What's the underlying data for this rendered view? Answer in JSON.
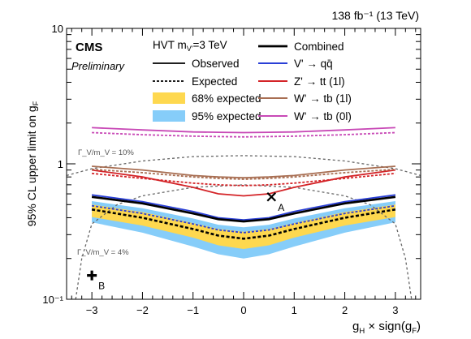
{
  "chart_data": {
    "type": "line",
    "top_right": "138 fb⁻¹ (13 TeV)",
    "experiment": "CMS",
    "status": "Preliminary",
    "model": "HVT m_V'=3 TeV",
    "xlabel": "g_H × sign(g_F)",
    "ylabel": "95% CL upper limit on g_F",
    "xlim": [
      -3.5,
      3.5
    ],
    "ylim": [
      0.1,
      10
    ],
    "yscale": "log",
    "xticks": [
      "−3",
      "−2",
      "−1",
      "0",
      "1",
      "2",
      "3"
    ],
    "yticks": [
      "10⁻¹",
      "1",
      "10"
    ],
    "legend": {
      "left": [
        {
          "label": "Observed",
          "style": "solid",
          "color": "#000000"
        },
        {
          "label": "Expected",
          "style": "dashed",
          "color": "#000000"
        },
        {
          "label": "68% expected",
          "style": "band",
          "color": "#fed84f"
        },
        {
          "label": "95% expected",
          "style": "band",
          "color": "#86cdf9"
        }
      ],
      "right": [
        {
          "label": "Combined",
          "color": "#000000"
        },
        {
          "label": "V' → qq̄",
          "color": "#2a3fd6"
        },
        {
          "label": "Z' → tt (1l)",
          "color": "#d42428"
        },
        {
          "label": "W' → tb (1l)",
          "color": "#a86e52"
        },
        {
          "label": "W' → tb (0l)",
          "color": "#c849b6"
        }
      ]
    },
    "x": [
      -3,
      -2,
      -1,
      -0.5,
      0,
      0.5,
      1,
      2,
      3
    ],
    "series": [
      {
        "name": "Combined",
        "style": "observed",
        "color": "#000000",
        "values": [
          0.57,
          0.51,
          0.43,
          0.39,
          0.375,
          0.39,
          0.43,
          0.51,
          0.57
        ]
      },
      {
        "name": "Combined",
        "style": "expected",
        "color": "#000000",
        "values": [
          0.46,
          0.4,
          0.33,
          0.295,
          0.28,
          0.295,
          0.33,
          0.4,
          0.46
        ]
      },
      {
        "name": "V' → qq̄",
        "style": "observed",
        "color": "#2a3fd6",
        "values": [
          0.59,
          0.525,
          0.445,
          0.4,
          0.385,
          0.4,
          0.445,
          0.525,
          0.59
        ]
      },
      {
        "name": "V' → qq̄",
        "style": "expected",
        "color": "#2a3fd6",
        "values": [
          0.49,
          0.43,
          0.36,
          0.325,
          0.31,
          0.325,
          0.36,
          0.43,
          0.49
        ]
      },
      {
        "name": "Z' → tt (1l)",
        "style": "observed",
        "color": "#d42428",
        "values": [
          0.9,
          0.8,
          0.67,
          0.6,
          0.58,
          0.6,
          0.67,
          0.8,
          0.9
        ]
      },
      {
        "name": "Z' → tt (1l)",
        "style": "expected",
        "color": "#d42428",
        "values": [
          0.85,
          0.78,
          0.72,
          0.7,
          0.69,
          0.7,
          0.72,
          0.78,
          0.85
        ]
      },
      {
        "name": "W' → tb (1l)",
        "style": "observed",
        "color": "#a86e52",
        "values": [
          0.96,
          0.9,
          0.82,
          0.8,
          0.79,
          0.8,
          0.82,
          0.9,
          0.96
        ]
      },
      {
        "name": "W' → tb (1l)",
        "style": "expected",
        "color": "#a86e52",
        "values": [
          0.91,
          0.86,
          0.8,
          0.78,
          0.77,
          0.78,
          0.8,
          0.86,
          0.91
        ]
      },
      {
        "name": "W' → tb (0l)",
        "style": "observed",
        "color": "#c849b6",
        "values": [
          1.85,
          1.78,
          1.72,
          1.71,
          1.7,
          1.71,
          1.72,
          1.78,
          1.85
        ]
      },
      {
        "name": "W' → tb (0l)",
        "style": "expected",
        "color": "#c849b6",
        "values": [
          1.7,
          1.64,
          1.6,
          1.59,
          1.58,
          1.59,
          1.6,
          1.64,
          1.7
        ]
      }
    ],
    "band95": {
      "x": [
        -3,
        -2,
        -1,
        -0.5,
        0,
        0.5,
        1,
        2,
        3
      ],
      "low": [
        0.37,
        0.31,
        0.245,
        0.215,
        0.2,
        0.215,
        0.245,
        0.31,
        0.37
      ],
      "high": [
        0.53,
        0.47,
        0.395,
        0.355,
        0.34,
        0.355,
        0.395,
        0.47,
        0.53
      ]
    },
    "band68": {
      "x": [
        -3,
        -2,
        -1,
        -0.5,
        0,
        0.5,
        1,
        2,
        3
      ],
      "low": [
        0.405,
        0.35,
        0.285,
        0.25,
        0.235,
        0.25,
        0.285,
        0.35,
        0.405
      ],
      "high": [
        0.5,
        0.44,
        0.365,
        0.33,
        0.315,
        0.33,
        0.365,
        0.44,
        0.5
      ]
    },
    "width_curves": [
      {
        "label": "Γ_V/m_V = 10%",
        "color": "#666666",
        "x": [
          -3.5,
          -3,
          -2,
          -1,
          0,
          1,
          2,
          3,
          3.5
        ],
        "values": [
          0.82,
          0.92,
          1.05,
          1.13,
          1.15,
          1.13,
          1.05,
          0.92,
          0.82
        ]
      },
      {
        "label": "Γ_V/m_V = 4%",
        "color": "#666666",
        "x": [
          -3.32,
          -3.2,
          -3,
          -2.5,
          -2,
          -1,
          0,
          1,
          2,
          2.5,
          3,
          3.2,
          3.32
        ],
        "values": [
          0.1,
          0.2,
          0.36,
          0.5,
          0.58,
          0.67,
          0.7,
          0.67,
          0.58,
          0.5,
          0.36,
          0.2,
          0.1
        ]
      }
    ],
    "markers": [
      {
        "label": "A",
        "x": 0.55,
        "y": 0.57
      },
      {
        "label": "B",
        "x": -3.0,
        "y": 0.15
      }
    ]
  }
}
